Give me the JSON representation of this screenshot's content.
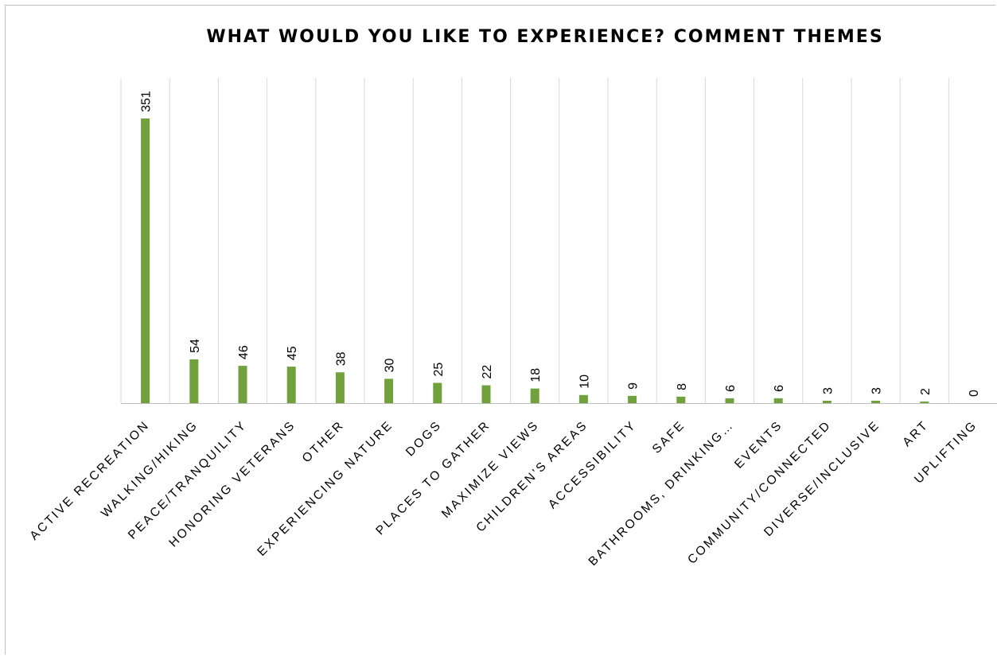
{
  "chart_data": {
    "type": "bar",
    "title": "WHAT WOULD YOU LIKE TO EXPERIENCE? COMMENT THEMES",
    "xlabel": "",
    "ylabel": "",
    "categories": [
      "ACTIVE RECREATION",
      "WALKING/HIKING",
      "PEACE/TRANQUILITY",
      "HONORING VETERANS",
      "OTHER",
      "EXPERIENCING NATURE",
      "DOGS",
      "PLACES TO GATHER",
      "MAXIMIZE VIEWS",
      "CHILDREN’S AREAS",
      "ACCESSIBILITY",
      "SAFE",
      "BATHROOMS, DRINKING…",
      "EVENTS",
      "COMMUNITY/CONNECTED",
      "DIVERSE/INCLUSIVE",
      "ART",
      "UPLIFTING"
    ],
    "values": [
      351,
      54,
      46,
      45,
      38,
      30,
      25,
      22,
      18,
      10,
      9,
      8,
      6,
      6,
      3,
      3,
      2,
      0
    ],
    "ylim": [
      0,
      400
    ],
    "grid": "vertical category separators",
    "legend": "none",
    "data_labels": true,
    "bar_color": "#70a13c",
    "grid_color": "#d9d9d9",
    "axis_color": "#bfbfbf"
  }
}
